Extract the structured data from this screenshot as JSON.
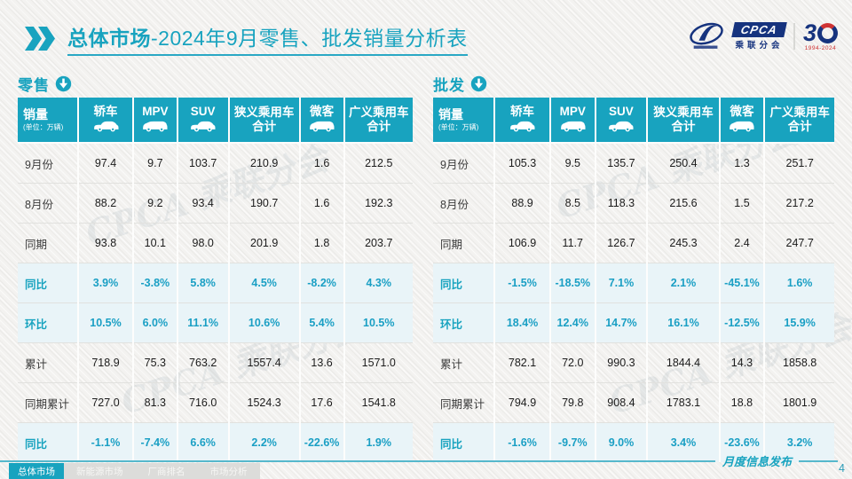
{
  "header": {
    "title_bold": "总体市场",
    "title_rest": "-2024年9月零售、批发销量分析表",
    "logo": {
      "cpca": "CPCA",
      "org": "乘联分会",
      "anniv_3": "3",
      "anniv_years": "1994-2024"
    }
  },
  "watermark": "CPCA 乘联分会",
  "table_common": {
    "row_header_title": "销量",
    "row_header_unit": "(单位：万辆)",
    "columns": [
      {
        "label": "轿车",
        "icon": "sedan-icon",
        "shape": "car"
      },
      {
        "label": "MPV",
        "icon": "mpv-icon",
        "shape": "van"
      },
      {
        "label": "SUV",
        "icon": "suv-icon",
        "shape": "car"
      },
      {
        "label": "狭义乘用车",
        "label2": "合计"
      },
      {
        "label": "微客",
        "icon": "microvan-icon",
        "shape": "van"
      },
      {
        "label": "广义乘用车",
        "label2": "合计"
      }
    ]
  },
  "tables": [
    {
      "name": "retail",
      "section_label": "零售",
      "rows": [
        {
          "label": "9月份",
          "type": "data",
          "values": [
            "97.4",
            "9.7",
            "103.7",
            "210.9",
            "1.6",
            "212.5"
          ]
        },
        {
          "label": "8月份",
          "type": "data",
          "values": [
            "88.2",
            "9.2",
            "93.4",
            "190.7",
            "1.6",
            "192.3"
          ]
        },
        {
          "label": "同期",
          "type": "data",
          "values": [
            "93.8",
            "10.1",
            "98.0",
            "201.9",
            "1.8",
            "203.7"
          ]
        },
        {
          "label": "同比",
          "type": "percent",
          "values": [
            "3.9%",
            "-3.8%",
            "5.8%",
            "4.5%",
            "-8.2%",
            "4.3%"
          ]
        },
        {
          "label": "环比",
          "type": "percent",
          "values": [
            "10.5%",
            "6.0%",
            "11.1%",
            "10.6%",
            "5.4%",
            "10.5%"
          ]
        },
        {
          "label": "累计",
          "type": "data",
          "values": [
            "718.9",
            "75.3",
            "763.2",
            "1557.4",
            "13.6",
            "1571.0"
          ]
        },
        {
          "label": "同期累计",
          "type": "data",
          "values": [
            "727.0",
            "81.3",
            "716.0",
            "1524.3",
            "17.6",
            "1541.8"
          ]
        },
        {
          "label": "同比",
          "type": "percent",
          "values": [
            "-1.1%",
            "-7.4%",
            "6.6%",
            "2.2%",
            "-22.6%",
            "1.9%"
          ]
        }
      ]
    },
    {
      "name": "wholesale",
      "section_label": "批发",
      "rows": [
        {
          "label": "9月份",
          "type": "data",
          "values": [
            "105.3",
            "9.5",
            "135.7",
            "250.4",
            "1.3",
            "251.7"
          ]
        },
        {
          "label": "8月份",
          "type": "data",
          "values": [
            "88.9",
            "8.5",
            "118.3",
            "215.6",
            "1.5",
            "217.2"
          ]
        },
        {
          "label": "同期",
          "type": "data",
          "values": [
            "106.9",
            "11.7",
            "126.7",
            "245.3",
            "2.4",
            "247.7"
          ]
        },
        {
          "label": "同比",
          "type": "percent",
          "values": [
            "-1.5%",
            "-18.5%",
            "7.1%",
            "2.1%",
            "-45.1%",
            "1.6%"
          ]
        },
        {
          "label": "环比",
          "type": "percent",
          "values": [
            "18.4%",
            "12.4%",
            "14.7%",
            "16.1%",
            "-12.5%",
            "15.9%"
          ]
        },
        {
          "label": "累计",
          "type": "data",
          "values": [
            "782.1",
            "72.0",
            "990.3",
            "1844.4",
            "14.3",
            "1858.8"
          ]
        },
        {
          "label": "同期累计",
          "type": "data",
          "values": [
            "794.9",
            "79.8",
            "908.4",
            "1783.1",
            "18.8",
            "1801.9"
          ]
        },
        {
          "label": "同比",
          "type": "percent",
          "values": [
            "-1.6%",
            "-9.7%",
            "9.0%",
            "3.4%",
            "-23.6%",
            "3.2%"
          ]
        }
      ]
    }
  ],
  "footer": {
    "tabs": [
      {
        "label": "总体市场",
        "active": true
      },
      {
        "label": "新能源市场",
        "active": false
      },
      {
        "label": "厂商排名",
        "active": false
      },
      {
        "label": "市场分析",
        "active": false
      }
    ],
    "publish_label": "月度信息发布",
    "page_number": "4"
  },
  "colors": {
    "accent": "#18a3bf",
    "percent_row_bg": "#e9f4f8",
    "navy": "#16337e",
    "red": "#cf3333"
  }
}
